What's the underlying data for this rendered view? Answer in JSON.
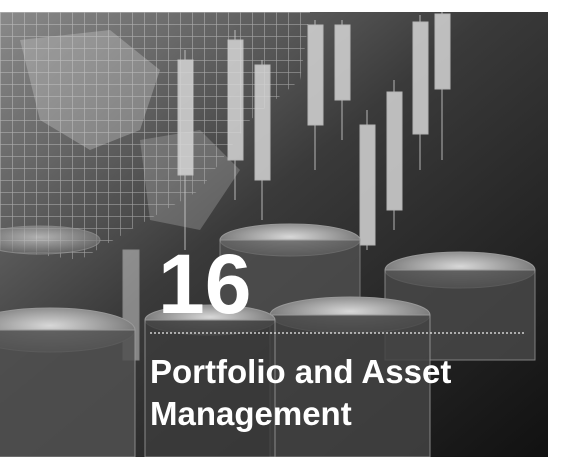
{
  "chapter": {
    "number": "16",
    "title_lines": [
      "Portfolio and Asset",
      "Management"
    ]
  }
}
